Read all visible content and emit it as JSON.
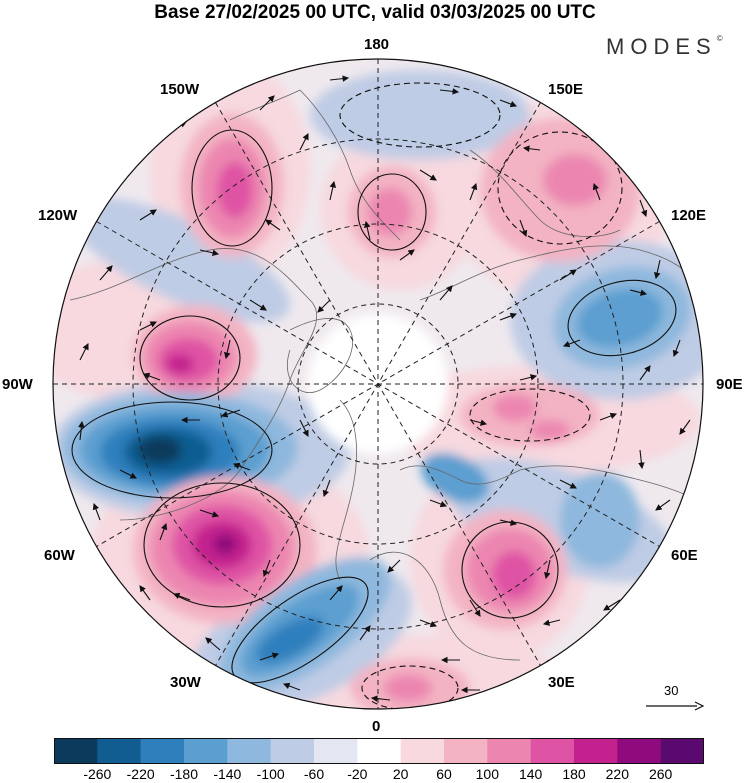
{
  "title": "Base 27/02/2025 00 UTC, valid 03/03/2025 00 UTC",
  "brand": "MODES",
  "brand_mark": "©",
  "longitude_labels": {
    "top": "180",
    "top_left": "150W",
    "top_right": "150E",
    "upper_left": "120W",
    "upper_right": "120E",
    "left": "90W",
    "right": "90E",
    "lower_left": "60W",
    "lower_right": "60E",
    "bottom_left": "30W",
    "bottom_right": "30E",
    "bottom": "0"
  },
  "reference_vector": {
    "label": "30",
    "icon": "arrow-right-icon"
  },
  "colorbar": {
    "tick_labels": [
      "-260",
      "-220",
      "-180",
      "-140",
      "-100",
      "-60",
      "-20",
      "20",
      "60",
      "100",
      "140",
      "180",
      "220",
      "260"
    ],
    "colors": [
      "#0b3a5c",
      "#115d92",
      "#2f7fbd",
      "#5b9fd0",
      "#8eb8dd",
      "#bfcce5",
      "#e4e6f2",
      "#ffffff",
      "#f7d9df",
      "#f3b3c3",
      "#ec86b0",
      "#df53a4",
      "#c3228e",
      "#8f0a7c",
      "#5a0a6e"
    ]
  },
  "anomalies": [
    {
      "sign": "positive",
      "level": 180,
      "near": "150W"
    },
    {
      "sign": "positive",
      "level": 100,
      "near": "180"
    },
    {
      "sign": "positive",
      "level": 100,
      "near": "150E"
    },
    {
      "sign": "negative",
      "level": -100,
      "near": "120E"
    },
    {
      "sign": "positive",
      "level": 220,
      "near": "90W-120W"
    },
    {
      "sign": "negative",
      "level": -260,
      "near": "60W-90W"
    },
    {
      "sign": "positive",
      "level": 220,
      "near": "60W"
    },
    {
      "sign": "negative",
      "level": -180,
      "near": "30W"
    },
    {
      "sign": "positive",
      "level": 180,
      "near": "30E"
    },
    {
      "sign": "positive",
      "level": 140,
      "near": "0"
    },
    {
      "sign": "positive",
      "level": 100,
      "near": "90E"
    },
    {
      "sign": "negative",
      "level": -100,
      "near": "60E"
    }
  ]
}
